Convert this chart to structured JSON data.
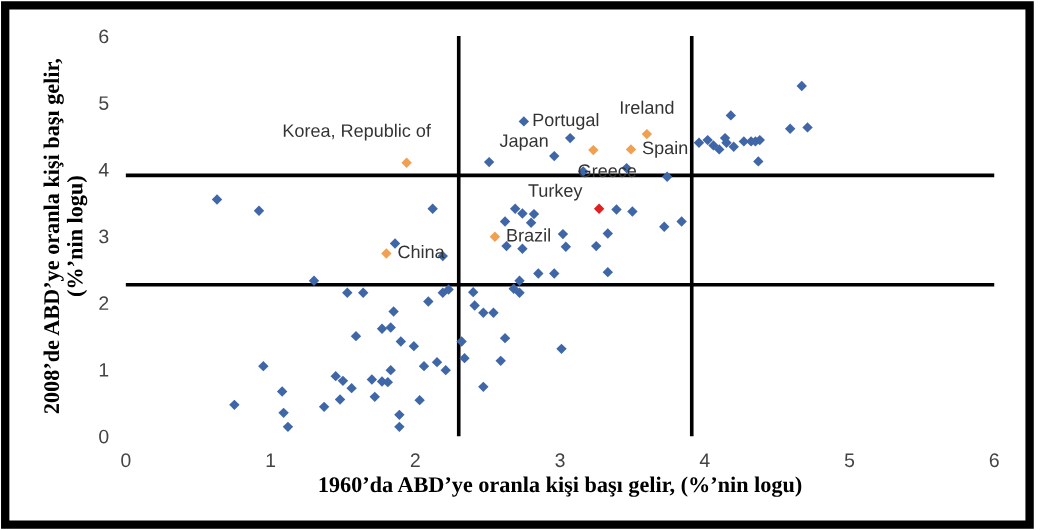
{
  "chart_data": {
    "type": "scatter",
    "xlabel": "1960’da ABD’ye oranla kişi başı gelir, (%’nin logu)",
    "ylabel": "2008’de ABD’ye oranla kişi başı gelir,\n(%’nin logu)",
    "xlim": [
      0,
      6
    ],
    "ylim": [
      0,
      6
    ],
    "xticks": [
      0,
      1,
      2,
      3,
      4,
      5,
      6
    ],
    "yticks": [
      0,
      1,
      2,
      3,
      4,
      5,
      6
    ],
    "grid": false,
    "legend": false,
    "marker": "diamond",
    "series": [
      {
        "color": "#3f67a8",
        "x": [
          2.51,
          2.75,
          2.96,
          3.07,
          0.63,
          0.92,
          2.12,
          1.86,
          2.19,
          1.3,
          2.69,
          2.74,
          2.82,
          2.62,
          2.8,
          2.63,
          2.74,
          3.02,
          3.04,
          2.85,
          2.96,
          2.72,
          2.68,
          2.72,
          1.53,
          1.64,
          2.09,
          2.19,
          2.23,
          2.4,
          2.41,
          2.47,
          2.54,
          1.85,
          1.77,
          1.83,
          1.59,
          1.9,
          1.99,
          2.32,
          2.34,
          2.62,
          2.59,
          3.01,
          0.95,
          1.08,
          1.09,
          1.12,
          0.75,
          1.45,
          1.5,
          1.56,
          1.7,
          1.77,
          1.81,
          1.83,
          1.72,
          1.48,
          1.37,
          2.06,
          2.15,
          2.21,
          2.47,
          2.03,
          1.89,
          1.89,
          3.16,
          3.46,
          3.74,
          3.39,
          3.5,
          3.33,
          3.25,
          3.33,
          3.72,
          3.84,
          4.67,
          4.18,
          4.59,
          4.71,
          3.96,
          4.02,
          4.06,
          4.1,
          4.14,
          4.15,
          4.2,
          4.27,
          4.32,
          4.35,
          4.38,
          4.37
        ],
        "values": [
          4.11,
          4.72,
          4.2,
          4.47,
          3.55,
          3.38,
          3.41,
          2.89,
          2.7,
          2.33,
          3.41,
          3.34,
          3.33,
          3.22,
          3.2,
          2.85,
          2.81,
          3.03,
          2.84,
          2.44,
          2.44,
          2.33,
          2.21,
          2.15,
          2.15,
          2.15,
          2.02,
          2.15,
          2.2,
          2.16,
          1.96,
          1.85,
          1.85,
          1.87,
          1.61,
          1.63,
          1.5,
          1.42,
          1.35,
          1.42,
          1.17,
          1.47,
          1.13,
          1.31,
          1.05,
          0.67,
          0.35,
          0.14,
          0.47,
          0.9,
          0.83,
          0.72,
          0.85,
          0.82,
          0.81,
          0.99,
          0.59,
          0.55,
          0.44,
          1.05,
          1.11,
          0.99,
          0.74,
          0.54,
          0.32,
          0.14,
          3.97,
          4.02,
          3.89,
          3.4,
          3.37,
          3.04,
          2.85,
          2.46,
          3.14,
          3.22,
          5.25,
          4.81,
          4.61,
          4.63,
          4.4,
          4.44,
          4.36,
          4.3,
          4.47,
          4.4,
          4.34,
          4.42,
          4.42,
          4.42,
          4.44,
          4.12
        ]
      },
      {
        "color": "#f0a050",
        "x": [
          1.94,
          1.8,
          2.55,
          3.6,
          3.23,
          3.49
        ],
        "values": [
          4.1,
          2.74,
          2.99,
          4.53,
          4.29,
          4.3
        ]
      },
      {
        "color": "#e02020",
        "x": [
          3.27
        ],
        "values": [
          3.41
        ]
      }
    ],
    "ref_lines": [
      {
        "axis": "x",
        "value": 2.3,
        "color": "#000000"
      },
      {
        "axis": "x",
        "value": 3.91,
        "color": "#000000"
      },
      {
        "axis": "y",
        "value": 3.91,
        "color": "#000000"
      },
      {
        "axis": "y",
        "value": 2.27,
        "color": "#000000"
      }
    ],
    "annotations": [
      {
        "text": "Korea, Republic of",
        "x": 1.94,
        "y": 4.1
      },
      {
        "text": "Portugal",
        "x": 2.75,
        "y": 4.72
      },
      {
        "text": "Japan",
        "x": 2.96,
        "y": 4.2
      },
      {
        "text": "Ireland",
        "x": 3.6,
        "y": 4.53
      },
      {
        "text": "Spain",
        "x": 3.49,
        "y": 4.3
      },
      {
        "text": "Greece",
        "x": 3.23,
        "y": 4.29
      },
      {
        "text": "Turkey",
        "x": 3.27,
        "y": 3.41
      },
      {
        "text": "Brazil",
        "x": 2.55,
        "y": 2.99
      },
      {
        "text": "China",
        "x": 1.8,
        "y": 2.74
      }
    ]
  }
}
